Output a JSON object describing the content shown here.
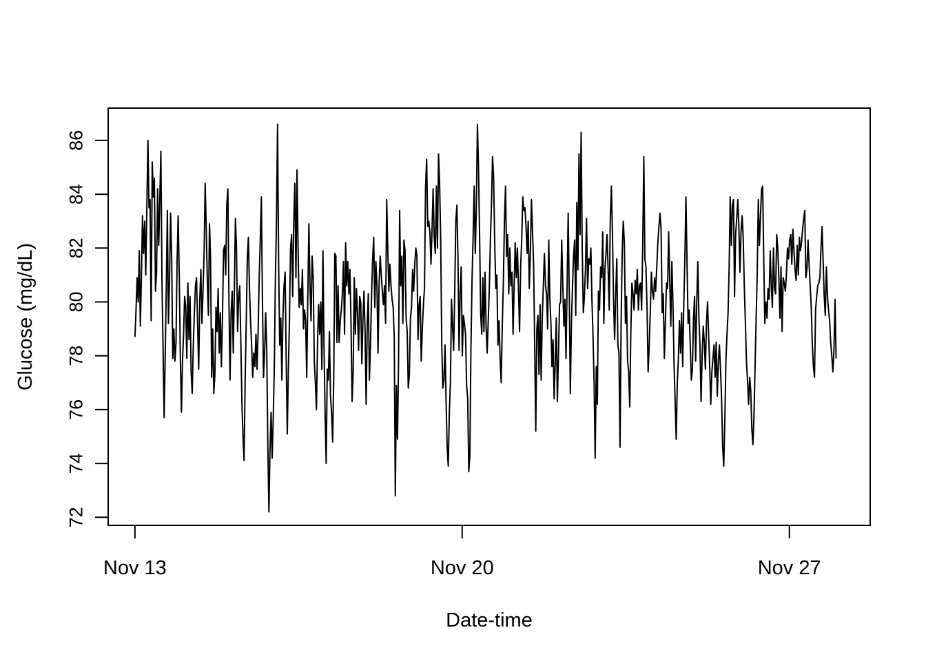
{
  "chart_data": {
    "type": "line",
    "title": "",
    "xlabel": "Date-time",
    "ylabel": "Glucose (mg/dL)",
    "x_ticks": [
      {
        "date": "2023-11-13",
        "label": "Nov 13"
      },
      {
        "date": "2023-11-20",
        "label": "Nov 20"
      },
      {
        "date": "2023-11-27",
        "label": "Nov 27"
      }
    ],
    "xlim": [
      "2023-11-12T10:15",
      "2023-11-28T17:30"
    ],
    "y_ticks": [
      72,
      74,
      76,
      78,
      80,
      82,
      84,
      86
    ],
    "ylim": [
      71.7,
      87.2
    ],
    "x_start": "2023-11-13T00:00",
    "x_end": "2023-11-28T00:00",
    "grid": false,
    "legend": "none",
    "line_color": "#000000",
    "series": [
      {
        "values": [
          78.7,
          79.7,
          80.9,
          80.0,
          81.9,
          79.1,
          81.0,
          83.2,
          81.8,
          83.0,
          81.0,
          83.5,
          86.0,
          83.5,
          83.8,
          79.3,
          85.2,
          83.9,
          84.6,
          80.4,
          81.1,
          84.2,
          82.1,
          83.8,
          85.6,
          80.8,
          78.3,
          75.7,
          78.0,
          80.5,
          83.4,
          79.2,
          80.8,
          83.3,
          81.6,
          77.9,
          79.0,
          77.8,
          78.5,
          81.5,
          83.2,
          81.0,
          78.0,
          75.9,
          77.8,
          78.8,
          80.2,
          79.8,
          77.9,
          80.7,
          78.6,
          80.2,
          77.4,
          76.6,
          78.4,
          79.6,
          80.6,
          80.9,
          79.2,
          77.5,
          80.1,
          81.2,
          79.2,
          80.4,
          81.8,
          84.4,
          82.7,
          80.8,
          79.5,
          82.9,
          81.6,
          77.2,
          79.0,
          76.6,
          77.3,
          79.8,
          78.9,
          80.5,
          78.1,
          79.6,
          77.6,
          79.4,
          81.9,
          82.1,
          81.0,
          83.6,
          84.2,
          80.1,
          77.1,
          79.6,
          80.4,
          78.1,
          80.4,
          83.1,
          82.0,
          78.9,
          80.2,
          80.6,
          78.5,
          76.3,
          75.0,
          74.1,
          77.1,
          79.2,
          81.6,
          82.4,
          80.5,
          79.3,
          78.4,
          77.2,
          78.1,
          77.6,
          78.8,
          77.5,
          78.9,
          80.9,
          82.3,
          83.9,
          80.1,
          77.2,
          78.1,
          79.6,
          78.2,
          74.7,
          72.2,
          74.5,
          75.9,
          74.2,
          75.7,
          77.6,
          80.9,
          83.0,
          86.6,
          81.4,
          78.4,
          79.4,
          77.1,
          79.5,
          80.6,
          81.1,
          77.8,
          75.1,
          77.5,
          79.3,
          82.0,
          82.5,
          80.2,
          83.0,
          84.4,
          80.9,
          84.9,
          82.0,
          79.8,
          80.5,
          79.9,
          81.2,
          79.0,
          79.7,
          79.3,
          77.2,
          80.2,
          82.9,
          80.6,
          79.3,
          81.7,
          80.9,
          77.8,
          77.0,
          76.0,
          78.5,
          79.9,
          78.8,
          80.0,
          77.5,
          81.9,
          78.3,
          75.9,
          74.0,
          77.5,
          77.1,
          78.9,
          76.5,
          75.9,
          74.8,
          77.2,
          81.8,
          81.7,
          78.5,
          80.6,
          78.5,
          79.3,
          79.7,
          80.3,
          81.5,
          78.8,
          82.2,
          80.6,
          81.5,
          80.3,
          81.2,
          79.2,
          76.3,
          77.4,
          80.9,
          78.8,
          80.5,
          79.6,
          78.2,
          80.2,
          80.0,
          77.7,
          79.3,
          80.4,
          78.9,
          76.2,
          79.2,
          80.3,
          77.1,
          78.4,
          80.2,
          81.6,
          82.4,
          79.8,
          81.5,
          80.6,
          78.1,
          80.7,
          81.7,
          81.0,
          80.4,
          79.9,
          80.6,
          79.2,
          83.8,
          82.0,
          80.4,
          81.4,
          80.6,
          80.1,
          79.8,
          78.7,
          72.8,
          76.9,
          74.9,
          77.8,
          83.4,
          80.6,
          81.7,
          79.2,
          82.3,
          81.9,
          79.4,
          78.9,
          76.8,
          77.3,
          79.4,
          79.8,
          81.2,
          80.4,
          81.4,
          82.0,
          81.7,
          78.6,
          79.9,
          80.2,
          77.8,
          79.0,
          79.9,
          80.5,
          84.3,
          85.3,
          82.8,
          83.0,
          82.6,
          81.4,
          82.7,
          84.2,
          82.4,
          81.8,
          84.3,
          82.0,
          85.5,
          84.4,
          82.3,
          78.4,
          76.8,
          77.1,
          78.4,
          76.3,
          74.6,
          73.9,
          75.9,
          77.0,
          80.1,
          79.1,
          78.2,
          80.4,
          83.0,
          83.6,
          81.6,
          78.2,
          80.3,
          81.3,
          78.0,
          79.5,
          79.2,
          78.8,
          76.9,
          76.4,
          73.7,
          74.3,
          78.3,
          80.8,
          82.4,
          84.3,
          81.8,
          83.5,
          86.6,
          85.0,
          82.5,
          79.6,
          78.8,
          80.9,
          78.9,
          81.1,
          79.1,
          78.1,
          79.3,
          80.5,
          82.3,
          83.6,
          85.4,
          84.6,
          82.2,
          80.5,
          81.0,
          78.4,
          79.3,
          77.9,
          77.0,
          79.1,
          80.7,
          83.0,
          84.3,
          81.7,
          82.5,
          80.3,
          82.0,
          80.6,
          81.1,
          78.8,
          80.6,
          82.2,
          80.9,
          82.0,
          80.5,
          78.9,
          81.3,
          82.3,
          83.9,
          83.4,
          83.5,
          82.8,
          81.8,
          83.0,
          80.5,
          81.8,
          83.8,
          82.6,
          81.4,
          78.4,
          75.2,
          79.0,
          79.5,
          77.3,
          79.9,
          77.1,
          79.4,
          80.6,
          81.8,
          80.6,
          80.3,
          79.0,
          82.3,
          80.2,
          79.2,
          77.6,
          78.6,
          76.4,
          77.7,
          79.4,
          76.3,
          78.0,
          79.9,
          80.0,
          82.3,
          80.7,
          79.1,
          80.1,
          77.9,
          80.6,
          83.3,
          80.3,
          76.6,
          79.2,
          80.6,
          81.7,
          82.3,
          79.5,
          83.7,
          81.2,
          85.5,
          82.5,
          86.3,
          82.0,
          79.6,
          80.2,
          81.2,
          83.1,
          80.5,
          81.6,
          81.4,
          82.0,
          80.1,
          78.7,
          77.0,
          74.2,
          77.6,
          76.2,
          80.4,
          79.7,
          81.3,
          80.9,
          82.6,
          79.2,
          81.2,
          81.8,
          82.5,
          81.2,
          79.7,
          83.1,
          84.3,
          82.5,
          80.1,
          78.6,
          80.3,
          81.6,
          78.4,
          78.1,
          74.6,
          79.2,
          81.8,
          83.0,
          82.2,
          79.2,
          80.2,
          77.8,
          77.4,
          76.1,
          78.9,
          80.7,
          80.3,
          79.7,
          80.8,
          80.3,
          81.2,
          79.7,
          80.6,
          80.7,
          79.7,
          82.1,
          85.4,
          81.6,
          81.3,
          79.8,
          77.4,
          78.4,
          79.6,
          81.1,
          80.4,
          80.1,
          80.9,
          80.4,
          81.3,
          82.2,
          82.8,
          83.3,
          82.7,
          79.6,
          80.3,
          77.9,
          79.3,
          80.7,
          80.5,
          82.6,
          80.8,
          79.1,
          81.5,
          79.9,
          77.7,
          76.3,
          74.9,
          77.0,
          77.9,
          79.3,
          78.1,
          79.6,
          77.6,
          79.9,
          81.6,
          83.9,
          81.5,
          79.2,
          79.7,
          78.4,
          77.1,
          77.5,
          79.4,
          80.2,
          77.8,
          80.0,
          81.5,
          79.4,
          78.4,
          76.3,
          78.0,
          79.1,
          78.5,
          77.5,
          79.2,
          80.0,
          78.8,
          77.6,
          76.2,
          77.4,
          77.9,
          78.4,
          77.2,
          78.5,
          76.5,
          77.8,
          78.4,
          77.5,
          76.4,
          74.6,
          73.9,
          75.6,
          77.8,
          78.8,
          79.6,
          81.3,
          83.9,
          82.1,
          83.6,
          83.8,
          80.2,
          82.5,
          83.1,
          83.8,
          82.8,
          81.1,
          82.6,
          83.2,
          82.4,
          80.6,
          79.3,
          77.8,
          77.1,
          76.2,
          77.2,
          76.7,
          75.3,
          74.7,
          75.8,
          77.6,
          79.4,
          81.1,
          83.8,
          82.1,
          83.2,
          84.2,
          84.3,
          81.7,
          79.2,
          80.0,
          79.4,
          80.5,
          80.1,
          81.9,
          80.6,
          79.8,
          82.0,
          80.5,
          80.3,
          82.5,
          82.0,
          80.9,
          79.4,
          81.3,
          78.9,
          80.9,
          80.7,
          80.4,
          81.0,
          82.0,
          81.6,
          82.3,
          82.5,
          81.4,
          82.7,
          81.9,
          81.2,
          80.8,
          82.1,
          81.0,
          82.4,
          81.9,
          82.2,
          82.7,
          83.1,
          83.4,
          80.9,
          81.2,
          82.3,
          81.4,
          80.6,
          79.8,
          78.4,
          77.6,
          77.2,
          79.7,
          80.2,
          80.6,
          80.7,
          80.9,
          82.0,
          82.8,
          81.5,
          80.2,
          79.5,
          81.3,
          80.2,
          79.7,
          79.3,
          78.5,
          78.0,
          77.4,
          78.2,
          80.1,
          77.9
        ]
      }
    ]
  }
}
